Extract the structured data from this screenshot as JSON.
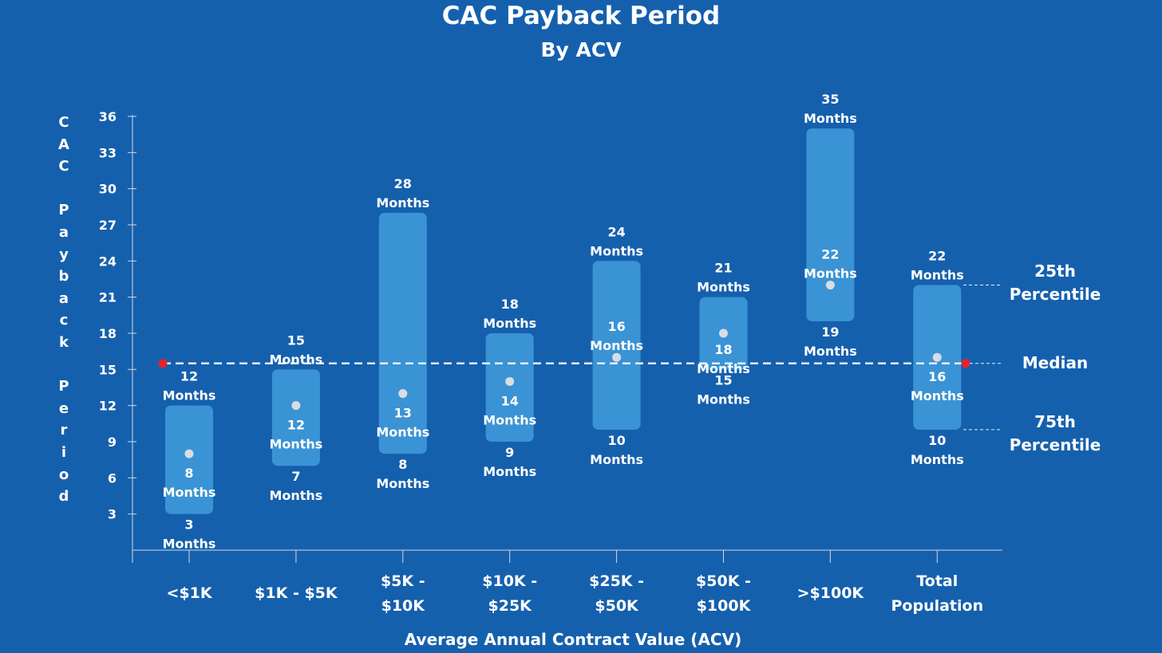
{
  "chart_data": {
    "type": "range-bar",
    "title": "CAC Payback Period",
    "subtitle": "By ACV",
    "xlabel": "Average Annual Contract Value (ACV)",
    "ylabel": "CAC Payback Period",
    "ylim": [
      0,
      36
    ],
    "yticks": [
      3,
      6,
      9,
      12,
      15,
      18,
      21,
      24,
      27,
      30,
      33,
      36
    ],
    "unit": "Months",
    "categories": [
      [
        "<$1K"
      ],
      [
        "$1K - $5K"
      ],
      [
        "$5K -",
        "$10K"
      ],
      [
        "$10K -",
        "$25K"
      ],
      [
        "$25K -",
        "$50K"
      ],
      [
        "$50K -",
        "$100K"
      ],
      [
        ">$100K"
      ],
      [
        "Total",
        "Population"
      ]
    ],
    "series": [
      {
        "name": "25th Percentile",
        "values": [
          12,
          15,
          28,
          18,
          24,
          21,
          35,
          22
        ]
      },
      {
        "name": "Median",
        "values": [
          8,
          12,
          13,
          14,
          16,
          18,
          22,
          16
        ]
      },
      {
        "name": "75th Percentile",
        "values": [
          3,
          7,
          8,
          9,
          10,
          15,
          19,
          10
        ]
      }
    ],
    "overall_median_line": 15.5,
    "legend": {
      "p25": "25th\nPercentile",
      "median": "Median",
      "p75": "75th\nPercentile"
    },
    "colors": {
      "background": "#1560ad",
      "bar": "#3a93d4",
      "dot": "#d9dde3",
      "median_marker": "#e8212a",
      "text": "#ffffff"
    }
  }
}
